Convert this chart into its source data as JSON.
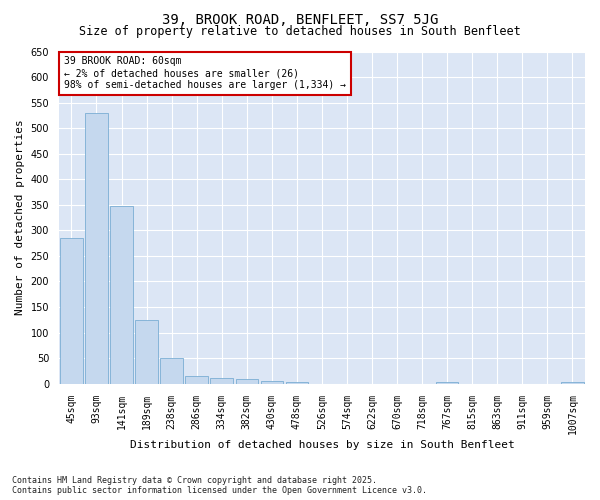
{
  "title": "39, BROOK ROAD, BENFLEET, SS7 5JG",
  "subtitle": "Size of property relative to detached houses in South Benfleet",
  "xlabel": "Distribution of detached houses by size in South Benfleet",
  "ylabel": "Number of detached properties",
  "categories": [
    "45sqm",
    "93sqm",
    "141sqm",
    "189sqm",
    "238sqm",
    "286sqm",
    "334sqm",
    "382sqm",
    "430sqm",
    "478sqm",
    "526sqm",
    "574sqm",
    "622sqm",
    "670sqm",
    "718sqm",
    "767sqm",
    "815sqm",
    "863sqm",
    "911sqm",
    "959sqm",
    "1007sqm"
  ],
  "values": [
    284,
    530,
    348,
    125,
    50,
    15,
    10,
    9,
    5,
    4,
    0,
    0,
    0,
    0,
    0,
    4,
    0,
    0,
    0,
    0,
    4
  ],
  "bar_color": "#c5d8ee",
  "bar_edge_color": "#7aadd4",
  "annotation_text": "39 BROOK ROAD: 60sqm\n← 2% of detached houses are smaller (26)\n98% of semi-detached houses are larger (1,334) →",
  "annotation_box_color": "#ffffff",
  "annotation_box_edge_color": "#cc0000",
  "ylim": [
    0,
    650
  ],
  "yticks": [
    0,
    50,
    100,
    150,
    200,
    250,
    300,
    350,
    400,
    450,
    500,
    550,
    600,
    650
  ],
  "fig_bg_color": "#ffffff",
  "plot_bg_color": "#dce6f5",
  "grid_color": "#ffffff",
  "footer": "Contains HM Land Registry data © Crown copyright and database right 2025.\nContains public sector information licensed under the Open Government Licence v3.0.",
  "title_fontsize": 10,
  "subtitle_fontsize": 8.5,
  "axis_label_fontsize": 8,
  "tick_fontsize": 7,
  "annotation_fontsize": 7,
  "footer_fontsize": 6
}
